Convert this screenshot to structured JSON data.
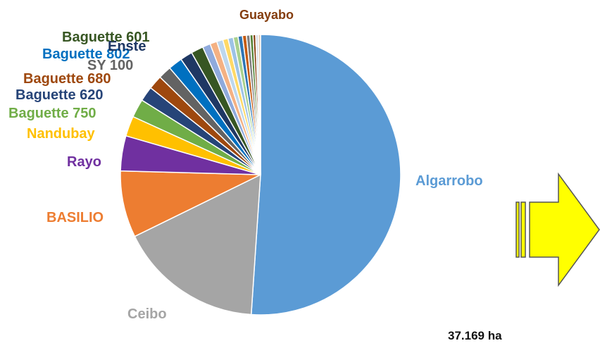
{
  "chart_data": {
    "type": "pie",
    "title": "",
    "slices": [
      {
        "label": "Algarrobo",
        "value": 50.5,
        "color": "#5b9bd5"
      },
      {
        "label": "Ceibo",
        "value": 16.5,
        "color": "#a5a5a5"
      },
      {
        "label": "BASILIO",
        "value": 7.6,
        "color": "#ed7d31"
      },
      {
        "label": "Rayo",
        "value": 4.0,
        "color": "#7030a0"
      },
      {
        "label": "Nandubay",
        "value": 2.3,
        "color": "#ffc000"
      },
      {
        "label": "Baguette 750",
        "value": 2.1,
        "color": "#70ad47"
      },
      {
        "label": "Baguette 620",
        "value": 1.7,
        "color": "#264478"
      },
      {
        "label": "Baguette 680",
        "value": 1.6,
        "color": "#9e480e"
      },
      {
        "label": "SY 100",
        "value": 1.5,
        "color": "#636363"
      },
      {
        "label": "Baguette 802",
        "value": 1.6,
        "color": "#0070c0"
      },
      {
        "label": "Enste",
        "value": 1.4,
        "color": "#1f3864"
      },
      {
        "label": "Baguette 601",
        "value": 1.4,
        "color": "#375623"
      },
      {
        "label": "",
        "value": 0.9,
        "color": "#8faadc"
      },
      {
        "label": "",
        "value": 0.8,
        "color": "#f4b183"
      },
      {
        "label": "",
        "value": 0.7,
        "color": "#bdd7ee"
      },
      {
        "label": "",
        "value": 0.6,
        "color": "#ffd966"
      },
      {
        "label": "",
        "value": 0.6,
        "color": "#9dc3e6"
      },
      {
        "label": "",
        "value": 0.55,
        "color": "#a9d18e"
      },
      {
        "label": "",
        "value": 0.5,
        "color": "#2e75b6"
      },
      {
        "label": "",
        "value": 0.45,
        "color": "#c55a11"
      },
      {
        "label": "",
        "value": 0.4,
        "color": "#7f7f7f"
      },
      {
        "label": "",
        "value": 0.35,
        "color": "#548235"
      },
      {
        "label": "Guayabo",
        "value": 0.3,
        "color": "#843c0c"
      },
      {
        "label": "",
        "value": 0.3,
        "color": "#d6dce5"
      },
      {
        "label": "",
        "value": 0.25,
        "color": "#e2c7a8"
      }
    ],
    "legend": "none"
  },
  "annotation": {
    "total": "37.169 ha"
  },
  "arrow": {
    "fill": "#ffff00",
    "stroke": "#555555"
  }
}
